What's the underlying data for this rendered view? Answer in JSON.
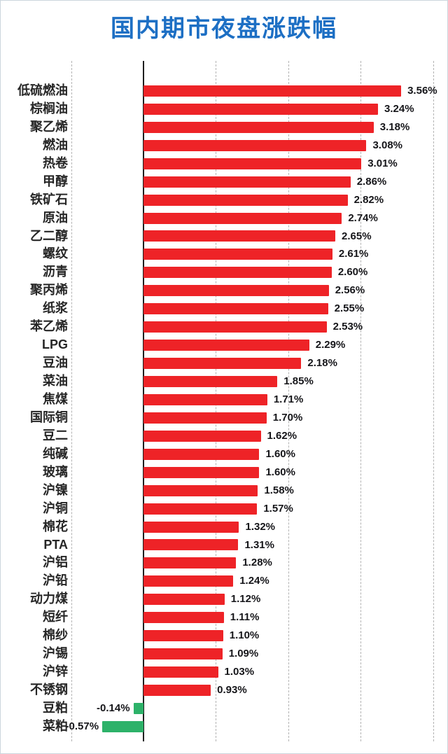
{
  "title": {
    "text": "国内期市夜盘涨跌幅",
    "color": "#1d6fc4"
  },
  "chart_data": {
    "type": "bar",
    "orientation": "horizontal",
    "title": "国内期市夜盘涨跌幅",
    "categories": [
      "低硫燃油",
      "棕榈油",
      "聚乙烯",
      "燃油",
      "热卷",
      "甲醇",
      "铁矿石",
      "原油",
      "乙二醇",
      "螺纹",
      "沥青",
      "聚丙烯",
      "纸浆",
      "苯乙烯",
      "LPG",
      "豆油",
      "菜油",
      "焦煤",
      "国际铜",
      "豆二",
      "纯碱",
      "玻璃",
      "沪镍",
      "沪铜",
      "棉花",
      "PTA",
      "沪铝",
      "沪铅",
      "动力煤",
      "短纤",
      "棉纱",
      "沪锡",
      "沪锌",
      "不锈钢",
      "豆粕",
      "菜粕"
    ],
    "values": [
      3.56,
      3.24,
      3.18,
      3.08,
      3.01,
      2.86,
      2.82,
      2.74,
      2.65,
      2.61,
      2.6,
      2.56,
      2.55,
      2.53,
      2.29,
      2.18,
      1.85,
      1.71,
      1.7,
      1.62,
      1.6,
      1.6,
      1.58,
      1.57,
      1.32,
      1.31,
      1.28,
      1.24,
      1.12,
      1.11,
      1.1,
      1.09,
      1.03,
      0.93,
      -0.14,
      -0.57
    ],
    "value_labels": [
      "3.56%",
      "3.24%",
      "3.18%",
      "3.08%",
      "3.01%",
      "2.86%",
      "2.82%",
      "2.74%",
      "2.65%",
      "2.61%",
      "2.60%",
      "2.56%",
      "2.55%",
      "2.53%",
      "2.29%",
      "2.18%",
      "1.85%",
      "1.71%",
      "1.70%",
      "1.62%",
      "1.60%",
      "1.60%",
      "1.58%",
      "1.57%",
      "1.32%",
      "1.31%",
      "1.28%",
      "1.24%",
      "1.12%",
      "1.11%",
      "1.10%",
      "1.09%",
      "1.03%",
      "0.93%",
      "-0.14%",
      "-0.57%"
    ],
    "xlim": [
      -1,
      4
    ],
    "gridline_interval_pct": 1,
    "grid": "dashed-vertical",
    "legend": "none",
    "positive_color": "#ee2327",
    "negative_color": "#2db269",
    "unit": "%"
  }
}
